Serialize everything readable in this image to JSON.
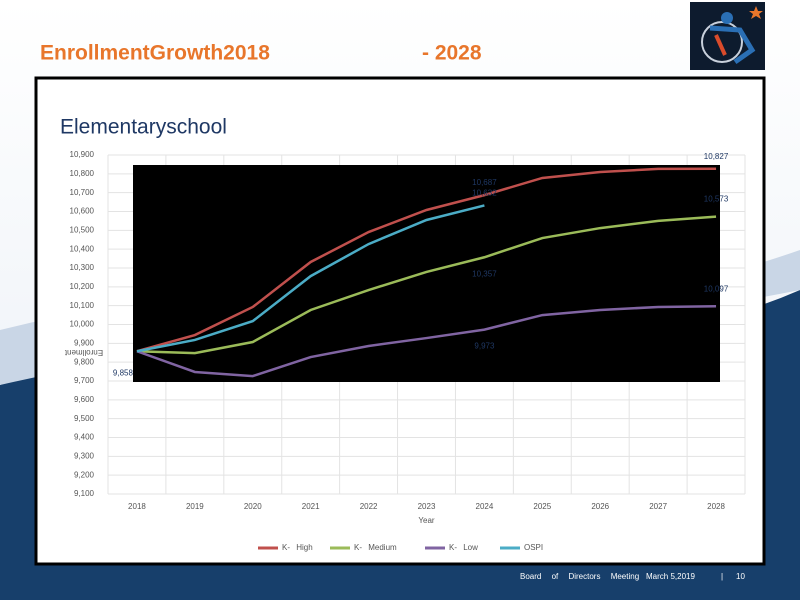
{
  "slide": {
    "title_left": "EnrollmentGrowth2018",
    "title_right": "- 2028",
    "footer": {
      "event": "Board of Directors Meeting",
      "date": "March 5,2019",
      "separator": "|",
      "page": "10"
    }
  },
  "chart_data": {
    "type": "line",
    "title": "Elementaryschool",
    "x_label": "Year",
    "y_label": "Enrollment",
    "categories": [
      "2018",
      "2019",
      "2020",
      "2021",
      "2022",
      "2023",
      "2024",
      "2025",
      "2026",
      "2027",
      "2028"
    ],
    "series": [
      {
        "name": "K- High",
        "color": "#c0504d",
        "values": [
          9858,
          9944,
          10093,
          10332,
          10491,
          10608,
          10687,
          10778,
          10810,
          10826,
          10827
        ],
        "value_labels": [
          "9,858",
          null,
          null,
          null,
          null,
          null,
          "10,687",
          null,
          null,
          null,
          "10,827"
        ]
      },
      {
        "name": "K- Medium",
        "color": "#9bbb59",
        "values": [
          9858,
          9848,
          9907,
          10077,
          10183,
          10279,
          10357,
          10459,
          10512,
          10550,
          10573
        ],
        "value_labels": [
          null,
          null,
          null,
          null,
          null,
          null,
          "10,357",
          null,
          null,
          null,
          "10,573"
        ]
      },
      {
        "name": "K- Low",
        "color": "#8064a2",
        "values": [
          9858,
          9748,
          9726,
          9827,
          9886,
          9928,
          9973,
          10050,
          10077,
          10093,
          10097
        ],
        "value_labels": [
          null,
          null,
          null,
          null,
          null,
          null,
          "9,973",
          null,
          null,
          null,
          "10,097"
        ]
      },
      {
        "name": "OSPI",
        "color": "#4bacc6",
        "values": [
          9858,
          9918,
          10018,
          10257,
          10427,
          10555,
          10632,
          null,
          null,
          null,
          null
        ],
        "value_labels": [
          null,
          null,
          null,
          null,
          null,
          null,
          "10,632",
          null,
          null,
          null,
          null
        ]
      }
    ],
    "ylim": [
      9100,
      10900
    ],
    "yticks": [
      {
        "value": 9100,
        "label": "9,100"
      },
      {
        "value": 9200,
        "label": "9,200"
      },
      {
        "value": 9300,
        "label": "9,300"
      },
      {
        "value": 9400,
        "label": "9,400"
      },
      {
        "value": 9500,
        "label": "9,500"
      },
      {
        "value": 9600,
        "label": "9,600"
      },
      {
        "value": 9700,
        "label": "9,700"
      },
      {
        "value": 9800,
        "label": "9,800"
      },
      {
        "value": 9900,
        "label": "9,900"
      },
      {
        "value": 10000,
        "label": "10,000"
      },
      {
        "value": 10100,
        "label": "10,100"
      },
      {
        "value": 10200,
        "label": "10,200"
      },
      {
        "value": 10300,
        "label": "10,300"
      },
      {
        "value": 10400,
        "label": "10,400"
      },
      {
        "value": 10500,
        "label": "10,500"
      },
      {
        "value": 10600,
        "label": "10,600"
      },
      {
        "value": 10700,
        "label": "10,700"
      },
      {
        "value": 10800,
        "label": "10,800"
      },
      {
        "value": 10900,
        "label": "10,900"
      }
    ],
    "grid": true,
    "legend": "bottom"
  }
}
